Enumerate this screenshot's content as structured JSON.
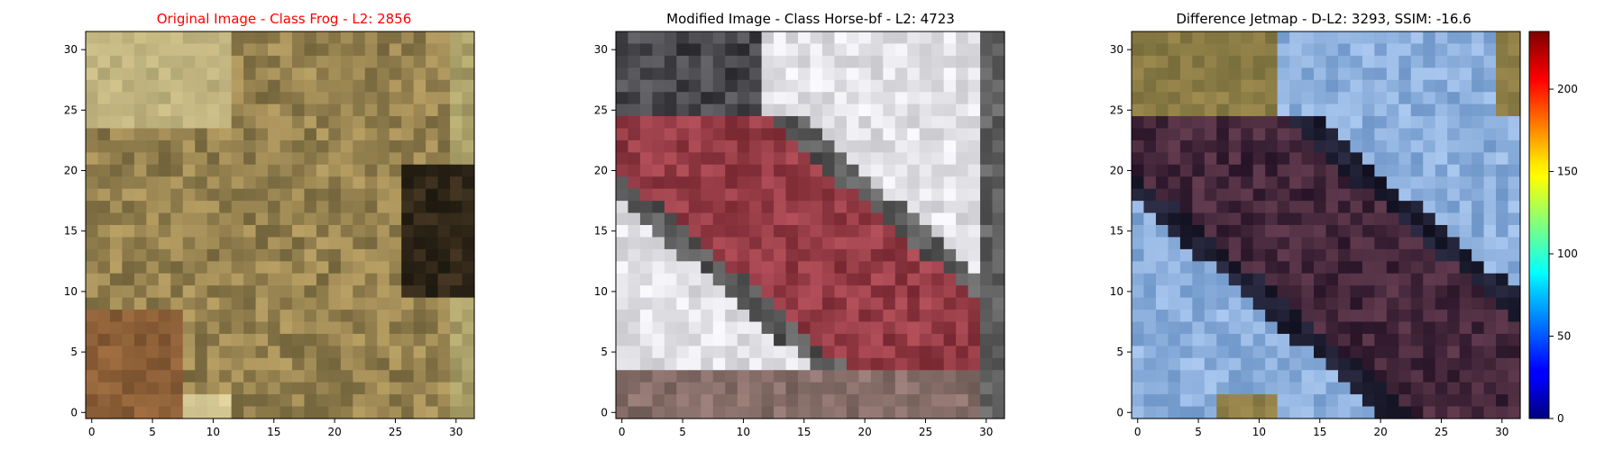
{
  "figure": {
    "colors": {
      "title_original": "#ff0000",
      "title_default": "#000000"
    },
    "panels": [
      {
        "id": "original",
        "title": "Original Image - Class Frog - L2: 2856",
        "title_color": "#ff0000"
      },
      {
        "id": "modified",
        "title": "Modified Image - Class Horse-bf - L2: 4723",
        "title_color": "#000000"
      },
      {
        "id": "difference",
        "title": "Difference Jetmap - D-L2: 3293, SSIM: -16.6",
        "title_color": "#000000"
      }
    ],
    "colorbar": {
      "colormap": "jet",
      "ticks": [
        "0",
        "50",
        "100",
        "150",
        "200"
      ],
      "range": [
        0,
        235
      ]
    }
  },
  "chart_data": [
    {
      "type": "heatmap",
      "title": "Original Image - Class Frog - L2: 2856",
      "image_size": [
        32,
        32
      ],
      "xticks": [
        "0",
        "5",
        "10",
        "15",
        "20",
        "25",
        "30"
      ],
      "yticks": [
        "0",
        "5",
        "10",
        "15",
        "20",
        "25",
        "30"
      ],
      "xlim": [
        -0.5,
        31.5
      ],
      "ylim": [
        31.5,
        -0.5
      ]
    },
    {
      "type": "heatmap",
      "title": "Modified Image - Class Horse-bf - L2: 4723",
      "image_size": [
        32,
        32
      ],
      "xticks": [
        "0",
        "5",
        "10",
        "15",
        "20",
        "25",
        "30"
      ],
      "yticks": [
        "0",
        "5",
        "10",
        "15",
        "20",
        "25",
        "30"
      ],
      "xlim": [
        -0.5,
        31.5
      ],
      "ylim": [
        31.5,
        -0.5
      ]
    },
    {
      "type": "heatmap",
      "title": "Difference Jetmap - D-L2: 3293, SSIM: -16.6",
      "image_size": [
        32,
        32
      ],
      "xticks": [
        "0",
        "5",
        "10",
        "15",
        "20",
        "25",
        "30"
      ],
      "yticks": [
        "0",
        "5",
        "10",
        "15",
        "20",
        "25",
        "30"
      ],
      "xlim": [
        -0.5,
        31.5
      ],
      "ylim": [
        31.5,
        -0.5
      ],
      "colorbar_ticks": [
        0,
        50,
        100,
        150,
        200
      ],
      "colorbar_range": [
        0,
        235
      ]
    }
  ]
}
